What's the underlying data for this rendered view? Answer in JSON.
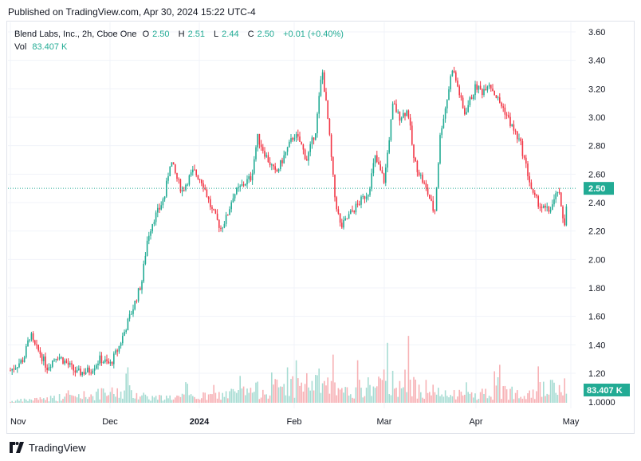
{
  "header": {
    "published": "Published on TradingView.com, Apr 30, 2024 15:22 UTC-4"
  },
  "legend": {
    "symbol": "Blend Labs, Inc., 2h, Cboe One",
    "o_label": "O",
    "o_value": "2.50",
    "h_label": "H",
    "h_value": "2.51",
    "l_label": "L",
    "l_value": "2.44",
    "c_label": "C",
    "c_value": "2.50",
    "change": "+0.01 (+0.40%)",
    "vol_label": "Vol",
    "vol_value": "83.407 K"
  },
  "footer": {
    "brand": "TradingView",
    "logo_icon": "tradingview-logo-icon"
  },
  "colors": {
    "up": "#22ab94",
    "down": "#f23645",
    "vol_up": "#a7dcd3",
    "vol_down": "#f7b1b5",
    "price_line": "#22ab94"
  },
  "chart_data": {
    "type": "candlestick",
    "title": "Blend Labs, Inc., 2h, Cboe One",
    "price_axis": {
      "ticks": [
        "3.60",
        "3.40",
        "3.20",
        "3.00",
        "2.80",
        "2.60",
        "2.40",
        "2.20",
        "2.00",
        "1.80",
        "1.60",
        "1.40",
        "1.20"
      ],
      "range": [
        1.0,
        3.66
      ]
    },
    "volume_axis_label": "1.0000",
    "x_ticks": [
      "Nov",
      "Dec",
      "2024",
      "Feb",
      "Mar",
      "Apr",
      "May"
    ],
    "last_price_label": "2.50",
    "last_volume_label": "83.407 K",
    "price_anchors": [
      [
        "Nov 1",
        1.22
      ],
      [
        "Nov 5",
        1.3
      ],
      [
        "Nov 7",
        1.48
      ],
      [
        "Nov 8",
        1.4
      ],
      [
        "Nov 10",
        1.34
      ],
      [
        "Nov 12",
        1.24
      ],
      [
        "Nov 15",
        1.33
      ],
      [
        "Nov 18",
        1.27
      ],
      [
        "Nov 21",
        1.2
      ],
      [
        "Nov 25",
        1.22
      ],
      [
        "Nov 28",
        1.3
      ],
      [
        "Dec 1",
        1.26
      ],
      [
        "Dec 4",
        1.38
      ],
      [
        "Dec 7",
        1.55
      ],
      [
        "Dec 9",
        1.66
      ],
      [
        "Dec 12",
        1.84
      ],
      [
        "Dec 14",
        2.15
      ],
      [
        "Dec 16",
        2.28
      ],
      [
        "Dec 18",
        2.35
      ],
      [
        "Dec 20",
        2.45
      ],
      [
        "Dec 22",
        2.7
      ],
      [
        "Dec 24",
        2.58
      ],
      [
        "Dec 26",
        2.48
      ],
      [
        "Dec 28",
        2.56
      ],
      [
        "Dec 30",
        2.62
      ],
      [
        "Jan 2",
        2.55
      ],
      [
        "Jan 5",
        2.35
      ],
      [
        "Jan 8",
        2.22
      ],
      [
        "Jan 10",
        2.3
      ],
      [
        "Jan 12",
        2.45
      ],
      [
        "Jan 15",
        2.52
      ],
      [
        "Jan 18",
        2.58
      ],
      [
        "Jan 20",
        2.86
      ],
      [
        "Jan 23",
        2.72
      ],
      [
        "Jan 26",
        2.6
      ],
      [
        "Jan 29",
        2.74
      ],
      [
        "Feb 1",
        2.88
      ],
      [
        "Feb 3",
        2.82
      ],
      [
        "Feb 5",
        2.7
      ],
      [
        "Feb 8",
        2.92
      ],
      [
        "Feb 10",
        3.34
      ],
      [
        "Feb 12",
        2.95
      ],
      [
        "Feb 14",
        2.45
      ],
      [
        "Feb 16",
        2.22
      ],
      [
        "Feb 19",
        2.32
      ],
      [
        "Feb 22",
        2.4
      ],
      [
        "Feb 25",
        2.48
      ],
      [
        "Feb 27",
        2.72
      ],
      [
        "Mar 1",
        2.55
      ],
      [
        "Mar 4",
        3.1
      ],
      [
        "Mar 6",
        3.0
      ],
      [
        "Mar 9",
        3.05
      ],
      [
        "Mar 11",
        2.7
      ],
      [
        "Mar 13",
        2.6
      ],
      [
        "Mar 16",
        2.45
      ],
      [
        "Mar 18",
        2.32
      ],
      [
        "Mar 20",
        2.9
      ],
      [
        "Mar 22",
        3.1
      ],
      [
        "Mar 24",
        3.35
      ],
      [
        "Mar 26",
        3.2
      ],
      [
        "Mar 28",
        3.02
      ],
      [
        "Apr 1",
        3.22
      ],
      [
        "Apr 3",
        3.18
      ],
      [
        "Apr 5",
        3.25
      ],
      [
        "Apr 8",
        3.12
      ],
      [
        "Apr 10",
        3.05
      ],
      [
        "Apr 12",
        2.95
      ],
      [
        "Apr 15",
        2.82
      ],
      [
        "Apr 17",
        2.64
      ],
      [
        "Apr 19",
        2.45
      ],
      [
        "Apr 22",
        2.36
      ],
      [
        "Apr 24",
        2.34
      ],
      [
        "Apr 26",
        2.42
      ],
      [
        "Apr 27",
        2.5
      ],
      [
        "Apr 28",
        2.34
      ],
      [
        "Apr 29",
        2.25
      ],
      [
        "Apr 30",
        2.5
      ]
    ],
    "volume_profile": [
      [
        "Nov",
        0.03
      ],
      [
        "Dec 8",
        0.22
      ],
      [
        "Dec 16",
        0.1
      ],
      [
        "Jan 5",
        0.13
      ],
      [
        "Feb 10",
        0.42
      ],
      [
        "Feb 16",
        0.18
      ],
      [
        "Mar 5",
        0.45
      ],
      [
        "Mar 22",
        0.14
      ],
      [
        "Apr 29",
        0.3
      ],
      [
        "Apr 30",
        0.6
      ]
    ]
  }
}
